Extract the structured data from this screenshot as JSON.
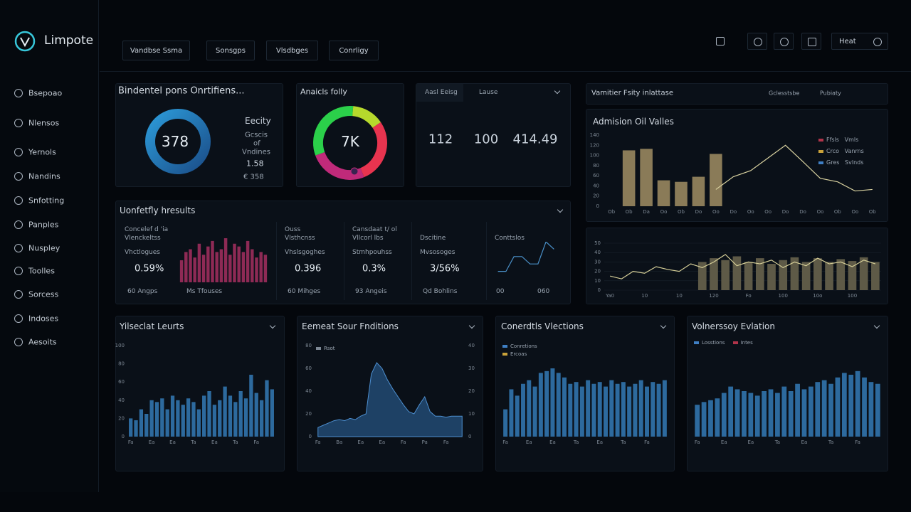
{
  "logo": "Limpote",
  "nav": [
    "Bsepoao",
    "Nlensos",
    "Yernols",
    "Nandins",
    "Snfotting",
    "Panples",
    "Nuspley",
    "Toolles",
    "Sorcess",
    "Indoses",
    "Aesoits"
  ],
  "tabs": [
    "Vandbse Ssma",
    "Sonsgps",
    "Vlsdbges",
    "Conrligy"
  ],
  "user": "Heat",
  "card_score": {
    "title": "Bindentel pons Onrtifiens...",
    "value": "378",
    "labels": [
      "Eecity",
      "Gcscis",
      "of",
      "Vndines",
      "1.58",
      "€ 358"
    ]
  },
  "card_ratio": {
    "title": "Anaicls folly",
    "value": "7K"
  },
  "card_stats": {
    "tabs": [
      "Aasl Eeisg",
      "Lause"
    ],
    "values": [
      "112",
      "100",
      "414.49"
    ]
  },
  "card_header": {
    "title": "Vamitier Fsity inlattase",
    "actions": [
      "Gclesstsbe",
      "Pubiaty"
    ]
  },
  "results": {
    "title": "Uonfetfly hresults",
    "cells": [
      {
        "lines": [
          "Concelef d 'ia",
          "Vlenckeltss",
          "Vhctlogues"
        ],
        "value": "0.59%",
        "foot": "60 Angps"
      },
      {
        "lines": [
          "Ouss",
          "Vlsthcnss",
          "Vhslsgoghes"
        ],
        "value": "0.396",
        "foot": "60 Mihges"
      },
      {
        "lines": [
          "Cansdaat t/ ol",
          "Vllcorl lbs",
          "Stmhpouhss"
        ],
        "value": "0.3%",
        "foot": "93 Angeis"
      },
      {
        "lines": [
          "Dscitine",
          "Mvsosoges"
        ],
        "value": "3/56%",
        "foot": "Qd Bohlins"
      },
      {
        "lines": [
          "Conttslos"
        ],
        "value": "",
        "foot": "060"
      }
    ]
  },
  "chart_data": [
    {
      "type": "combo",
      "title": "Admision Oil Valles",
      "categories": [
        "Ob",
        "Ob",
        "Da",
        "Oo",
        "Ob",
        "Do",
        "Oo",
        "Do",
        "Oo",
        "Oo",
        "Do",
        "Do",
        "Oo",
        "Ob",
        "Oo",
        "Ob"
      ],
      "series": [
        {
          "type": "bar",
          "color": "#8a7b58",
          "values": [
            null,
            110,
            113,
            51,
            48,
            58,
            103,
            null,
            null,
            null,
            null,
            null,
            null,
            null,
            null,
            null
          ]
        },
        {
          "type": "line",
          "color": "#d9d2a0",
          "values": [
            null,
            null,
            null,
            null,
            null,
            null,
            33,
            58,
            70,
            95,
            120,
            88,
            55,
            48,
            30,
            33
          ]
        }
      ],
      "legend": [
        {
          "labels": [
            "Ffsls",
            "Vmls"
          ],
          "color": "#b0344a"
        },
        {
          "labels": [
            "Crco",
            "Vanrns"
          ],
          "color": "#c9a23a"
        },
        {
          "labels": [
            "Gres",
            "Svlnds"
          ],
          "color": "#3f7fc4"
        }
      ],
      "ylim": [
        0,
        140
      ],
      "yticks": [
        0,
        20,
        40,
        60,
        80,
        100,
        120,
        140
      ],
      "grid": false
    },
    {
      "type": "combo",
      "categories": [
        "Ya0",
        null,
        null,
        "10",
        null,
        null,
        "10",
        null,
        null,
        "120",
        null,
        null,
        "Fo",
        null,
        null,
        "100",
        null,
        null,
        "10o",
        null,
        null,
        "100",
        null,
        null
      ],
      "series": [
        {
          "type": "bar",
          "color": "#5e5a47",
          "values": [
            null,
            null,
            null,
            null,
            null,
            null,
            null,
            null,
            30,
            34,
            32,
            36,
            30,
            34,
            28,
            32,
            35,
            30,
            34,
            30,
            33,
            31,
            35,
            30
          ]
        },
        {
          "type": "line",
          "color": "#d6cf98",
          "values": [
            15,
            12,
            20,
            18,
            25,
            22,
            20,
            28,
            24,
            30,
            38,
            26,
            30,
            28,
            32,
            24,
            30,
            26,
            34,
            28,
            30,
            25,
            32,
            28
          ]
        }
      ],
      "ylim": [
        0,
        50
      ],
      "yticks": [
        0,
        10,
        20,
        30,
        40,
        50
      ],
      "grid": true
    },
    {
      "type": "bar",
      "caption": "Ms Tfouses",
      "color": "#8e2a55",
      "values": [
        40,
        55,
        60,
        45,
        70,
        50,
        65,
        75,
        55,
        60,
        80,
        50,
        70,
        65,
        55,
        75,
        60,
        45,
        55,
        50
      ]
    },
    {
      "type": "line",
      "caption": "00",
      "color": "#4a90c8",
      "values": [
        10,
        10,
        30,
        30,
        20,
        20,
        50,
        40
      ]
    },
    {
      "type": "bar",
      "title": "Yilseclat Leurts",
      "color": "#2d6a9e",
      "categories": [
        "Fa",
        null,
        null,
        null,
        "Ea",
        null,
        null,
        null,
        "Ea",
        null,
        null,
        null,
        "Ta",
        null,
        null,
        null,
        "Ea",
        null,
        null,
        null,
        "Ta",
        null,
        null,
        null,
        "Fa",
        null,
        null,
        null
      ],
      "values": [
        20,
        18,
        30,
        25,
        40,
        38,
        42,
        30,
        45,
        40,
        35,
        42,
        38,
        30,
        45,
        50,
        35,
        40,
        55,
        45,
        38,
        50,
        42,
        68,
        48,
        40,
        62,
        52
      ],
      "ylim": [
        0,
        100
      ],
      "yticks": [
        0,
        20,
        40,
        60,
        80,
        100
      ],
      "grid": false
    },
    {
      "type": "area",
      "title": "Eemeat Sour Fnditions",
      "color": "#2f6aa6",
      "legend": [
        {
          "label": "Rsot",
          "color": "#7d8894"
        }
      ],
      "categories": [
        "Fa",
        null,
        null,
        null,
        "Ba",
        null,
        null,
        null,
        "Ea",
        null,
        null,
        null,
        "Ea",
        null,
        null,
        null,
        "Fa",
        null,
        null,
        null,
        "Pa",
        null,
        null,
        null,
        "Fa",
        null,
        null,
        null
      ],
      "values": [
        8,
        10,
        12,
        14,
        15,
        14,
        16,
        15,
        18,
        20,
        55,
        65,
        60,
        50,
        42,
        35,
        28,
        22,
        20,
        28,
        35,
        22,
        18,
        18,
        17,
        18,
        18,
        18
      ],
      "ylim": [
        0,
        80
      ],
      "yticks": [
        0,
        20,
        40,
        60,
        80
      ],
      "y2lim": [
        0,
        40
      ],
      "y2ticks": [
        0,
        10,
        20,
        30,
        40
      ],
      "grid": false
    },
    {
      "type": "bar",
      "title": "Conerdtls Vlections",
      "color": "#2d6a9e",
      "legend": [
        {
          "label": "Conretions",
          "color": "#3f7fc4"
        },
        {
          "label": "Ercoas",
          "color": "#c9a23a"
        }
      ],
      "categories": [
        "Fa",
        null,
        null,
        null,
        "Ea",
        null,
        null,
        null,
        "Ea",
        null,
        null,
        null,
        "Ta",
        null,
        null,
        null,
        "Ea",
        null,
        null,
        null,
        "Ta",
        null,
        null,
        null,
        "Fa",
        null,
        null,
        null
      ],
      "values": [
        30,
        52,
        45,
        58,
        62,
        55,
        70,
        72,
        75,
        70,
        65,
        58,
        60,
        55,
        62,
        58,
        60,
        55,
        62,
        58,
        60,
        55,
        58,
        62,
        55,
        60,
        58,
        62
      ],
      "ylim": [
        0,
        100
      ]
    },
    {
      "type": "bar",
      "title": "Volnerssoy Evlation",
      "color": "#2d6a9e",
      "legend": [
        {
          "label": "Losstions",
          "color": "#3f7fc4"
        },
        {
          "label": "Intes",
          "color": "#b0344a"
        }
      ],
      "categories": [
        "Fa",
        null,
        null,
        null,
        "Ea",
        null,
        null,
        null,
        "Ea",
        null,
        null,
        null,
        "Ta",
        null,
        null,
        null,
        "Ea",
        null,
        null,
        null,
        "Ta",
        null,
        null,
        null,
        "Fa",
        null,
        null,
        null
      ],
      "values": [
        35,
        38,
        40,
        42,
        48,
        55,
        52,
        50,
        48,
        45,
        50,
        52,
        48,
        55,
        50,
        58,
        52,
        55,
        60,
        62,
        58,
        65,
        70,
        68,
        72,
        65,
        60,
        58
      ],
      "ylim": [
        0,
        100
      ]
    }
  ]
}
